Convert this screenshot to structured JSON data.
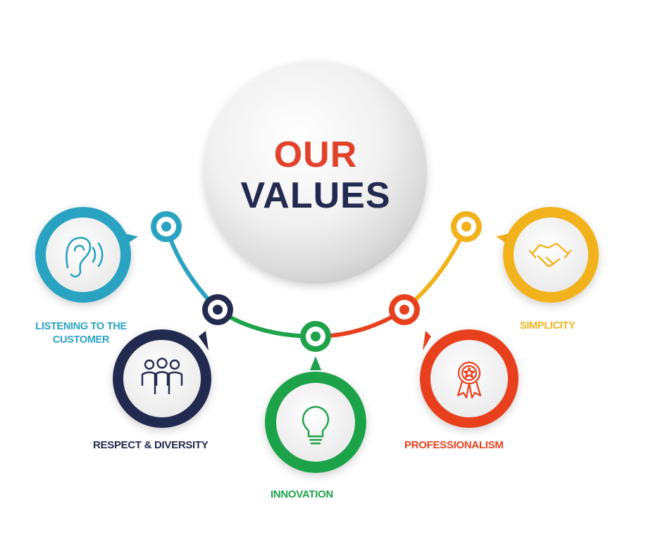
{
  "title": {
    "line1": "OUR",
    "line2": "VALUES"
  },
  "colors": {
    "teal": "#2aa3c2",
    "navy": "#232a4f",
    "green": "#1fa34a",
    "red": "#e8401c",
    "yellow": "#f2b21b",
    "title_red": "#e2422a"
  },
  "values": [
    {
      "key": "listening",
      "line1": "LISTENING TO THE",
      "line2": "CUSTOMER",
      "icon": "ear-icon",
      "color": "#2aa3c2"
    },
    {
      "key": "respect",
      "label": "RESPECT & DIVERSITY",
      "icon": "people-icon",
      "color": "#232a4f"
    },
    {
      "key": "innovation",
      "label": "INNOVATION",
      "icon": "lightbulb-icon",
      "color": "#1fa34a"
    },
    {
      "key": "professionalism",
      "label": "PROFESSIONALISM",
      "icon": "award-ribbon-icon",
      "color": "#e8401c"
    },
    {
      "key": "simplicity",
      "label": "SIMPLICITY",
      "icon": "handshake-icon",
      "color": "#f2b21b"
    }
  ]
}
